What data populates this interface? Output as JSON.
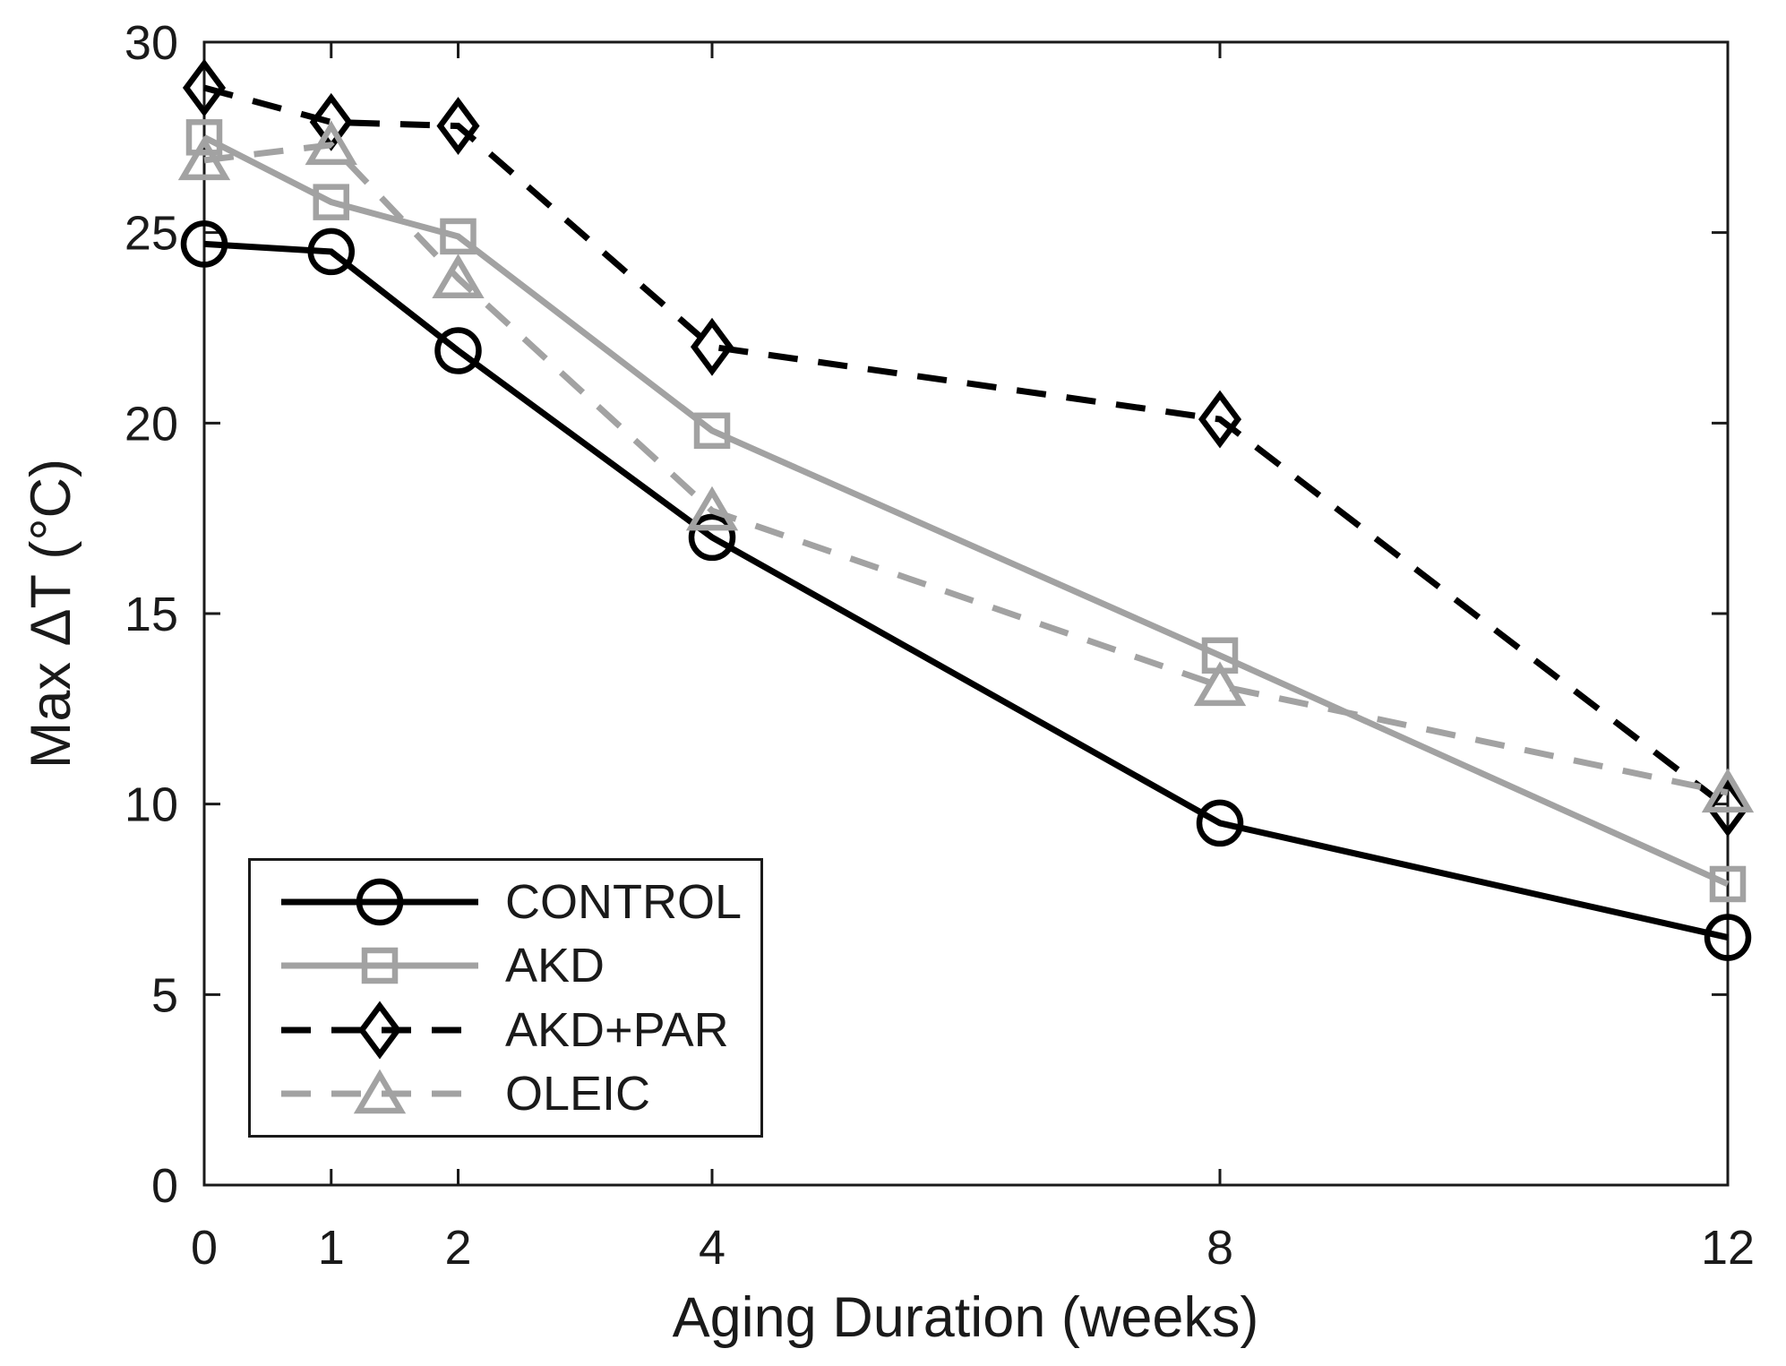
{
  "figure": {
    "background_color": "#ffffff",
    "axis_color": "#1a1a1a",
    "text_color": "#1a1a1a",
    "gray_series_color": "#a2a2a2"
  },
  "chart_data": {
    "type": "line",
    "title": "",
    "xlabel": "Aging Duration (weeks)",
    "ylabel": "Max ΔT (°C)",
    "x": [
      0,
      1,
      2,
      4,
      8,
      12
    ],
    "x_ticks": [
      0,
      1,
      2,
      4,
      8,
      12
    ],
    "y_ticks": [
      0,
      5,
      10,
      15,
      20,
      25,
      30
    ],
    "xlim": [
      0,
      12
    ],
    "ylim": [
      0,
      30
    ],
    "grid": false,
    "legend_position": "inside-bottom-left",
    "series": [
      {
        "name": "CONTROL",
        "marker": "circle",
        "line_style": "solid",
        "color": "#000000",
        "values": [
          24.7,
          24.5,
          21.9,
          17.0,
          9.5,
          6.5
        ]
      },
      {
        "name": "AKD",
        "marker": "square",
        "line_style": "solid",
        "color": "#a2a2a2",
        "values": [
          27.5,
          25.8,
          24.9,
          19.8,
          13.9,
          7.9
        ]
      },
      {
        "name": "AKD+PAR",
        "marker": "diamond",
        "line_style": "dashed",
        "color": "#000000",
        "values": [
          28.8,
          27.9,
          27.8,
          22.0,
          20.1,
          9.9
        ]
      },
      {
        "name": "OLEIC",
        "marker": "triangle",
        "line_style": "dashed",
        "color": "#a2a2a2",
        "values": [
          26.9,
          27.3,
          23.8,
          17.7,
          13.1,
          10.3
        ]
      }
    ]
  }
}
